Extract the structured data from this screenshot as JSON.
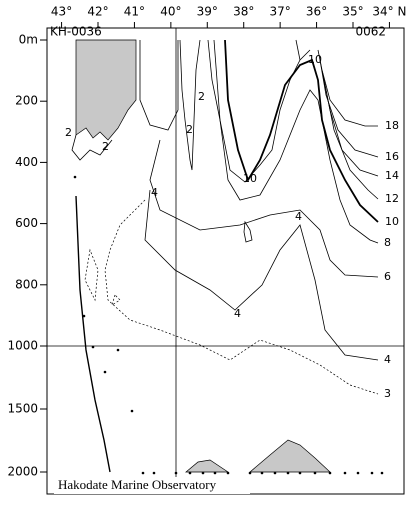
{
  "chart_data": {
    "type": "contour",
    "stations": {
      "first": "KH-0036",
      "last": "0062"
    },
    "credit": "Hakodate Marine Observatory",
    "xlim": [
      43.4,
      33.6
    ],
    "xticks": [
      {
        "value": 43,
        "label": "43°"
      },
      {
        "value": 42,
        "label": "42°"
      },
      {
        "value": 41,
        "label": "41°"
      },
      {
        "value": 40,
        "label": "40°"
      },
      {
        "value": 39,
        "label": "39°"
      },
      {
        "value": 38,
        "label": "38°"
      },
      {
        "value": 37,
        "label": "37°"
      },
      {
        "value": 36,
        "label": "36°"
      },
      {
        "value": 35,
        "label": "35°"
      },
      {
        "value": 34,
        "label": "34° N"
      }
    ],
    "ylim": [
      0,
      2000
    ],
    "y_break": 1000,
    "yticks": [
      {
        "value": 0,
        "label": "0m"
      },
      200,
      400,
      600,
      800,
      1000,
      1500,
      2000
    ],
    "contour_labels": [
      18,
      16,
      14,
      12,
      10,
      8,
      6,
      4,
      3,
      2,
      2,
      2,
      2,
      4,
      10,
      10,
      4,
      4
    ]
  }
}
